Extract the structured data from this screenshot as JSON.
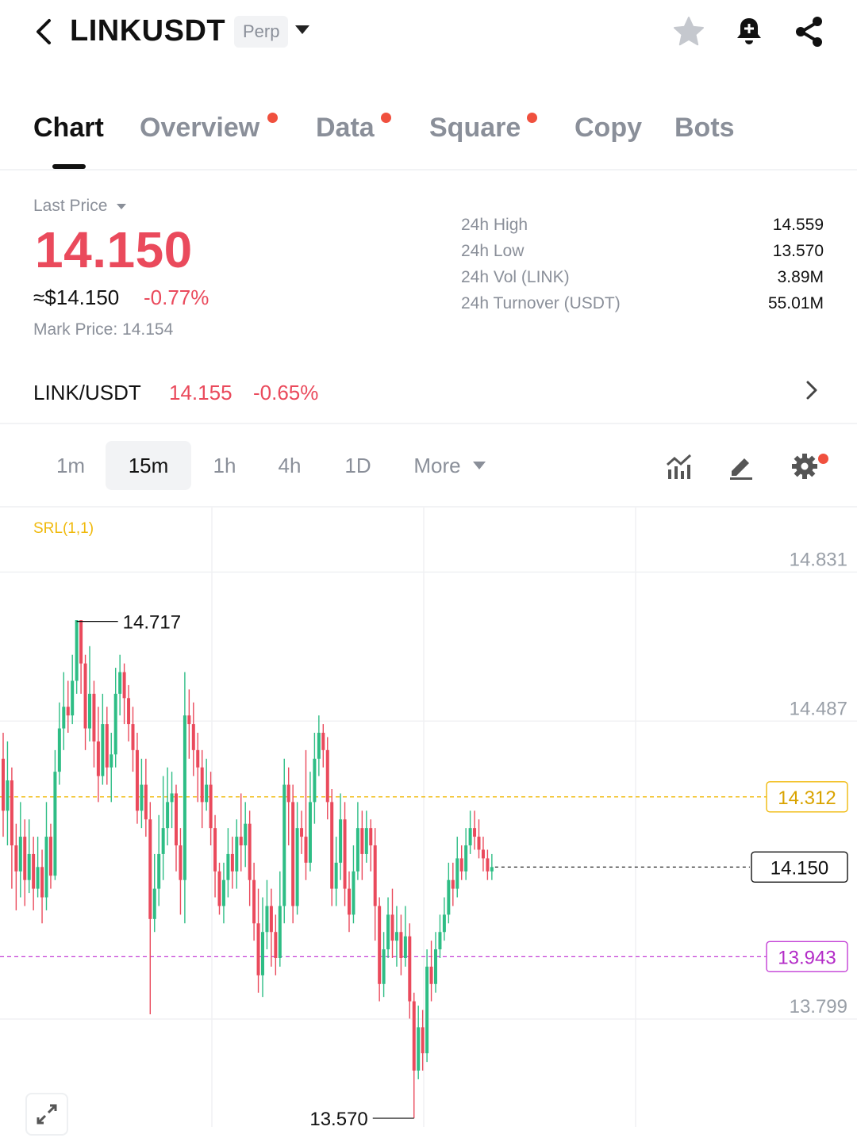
{
  "header": {
    "symbol": "LINKUSDT",
    "contract_type": "Perp",
    "icons": [
      "back-icon",
      "star-icon",
      "bell-plus-icon",
      "share-icon"
    ]
  },
  "tabs": [
    {
      "label": "Chart",
      "active": true,
      "dot": false
    },
    {
      "label": "Overview",
      "active": false,
      "dot": true
    },
    {
      "label": "Data",
      "active": false,
      "dot": true
    },
    {
      "label": "Square",
      "active": false,
      "dot": true
    },
    {
      "label": "Copy",
      "active": false,
      "dot": false
    },
    {
      "label": "Bots",
      "active": false,
      "dot": false
    }
  ],
  "price": {
    "label": "Last Price",
    "last": "14.150",
    "usd": "≈$14.150",
    "change_pct": "-0.77%",
    "mark_label": "Mark Price:",
    "mark_value": "14.154"
  },
  "stats": [
    {
      "label": "24h High",
      "value": "14.559"
    },
    {
      "label": "24h Low",
      "value": "13.570"
    },
    {
      "label": "24h Vol (LINK)",
      "value": "3.89M"
    },
    {
      "label": "24h Turnover (USDT)",
      "value": "55.01M"
    }
  ],
  "spot": {
    "pair": "LINK/USDT",
    "price": "14.155",
    "change": "-0.65%"
  },
  "timeframes": {
    "items": [
      "1m",
      "15m",
      "1h",
      "4h",
      "1D"
    ],
    "active": "15m",
    "more_label": "More"
  },
  "chart_data": {
    "type": "candlestick",
    "indicator": "SRL(1,1)",
    "ylim": [
      13.55,
      14.98
    ],
    "y_ticks": [
      14.831,
      14.487,
      13.799
    ],
    "high_label": "14.717",
    "low_label": "13.570",
    "lines": [
      {
        "value": "14.312",
        "color": "#f0b90b"
      },
      {
        "value": "13.943",
        "color": "#c33fd6"
      },
      {
        "value": "14.150",
        "color": "#111111"
      }
    ],
    "up_color": "#2ebd85",
    "down_color": "#ea4a5c",
    "candles": [
      [
        14.4,
        14.28,
        14.46,
        14.22
      ],
      [
        14.28,
        14.35,
        14.44,
        14.2
      ],
      [
        14.35,
        14.2,
        14.38,
        14.1
      ],
      [
        14.2,
        14.14,
        14.25,
        14.05
      ],
      [
        14.14,
        14.22,
        14.3,
        14.08
      ],
      [
        14.22,
        14.12,
        14.26,
        14.06
      ],
      [
        14.12,
        14.18,
        14.26,
        14.09
      ],
      [
        14.18,
        14.1,
        14.22,
        14.05
      ],
      [
        14.1,
        14.15,
        14.22,
        14.08
      ],
      [
        14.15,
        14.08,
        14.19,
        14.02
      ],
      [
        14.08,
        14.22,
        14.3,
        14.05
      ],
      [
        14.22,
        14.13,
        14.25,
        14.1
      ],
      [
        14.13,
        14.37,
        14.42,
        14.12
      ],
      [
        14.37,
        14.47,
        14.53,
        14.34
      ],
      [
        14.47,
        14.52,
        14.6,
        14.42
      ],
      [
        14.52,
        14.5,
        14.58,
        14.46
      ],
      [
        14.5,
        14.58,
        14.64,
        14.48
      ],
      [
        14.58,
        14.72,
        14.72,
        14.55
      ],
      [
        14.72,
        14.62,
        14.7,
        14.55
      ],
      [
        14.62,
        14.47,
        14.64,
        14.42
      ],
      [
        14.47,
        14.55,
        14.66,
        14.44
      ],
      [
        14.55,
        14.44,
        14.58,
        14.38
      ],
      [
        14.44,
        14.36,
        14.52,
        14.3
      ],
      [
        14.36,
        14.48,
        14.55,
        14.34
      ],
      [
        14.48,
        14.38,
        14.52,
        14.34
      ],
      [
        14.38,
        14.41,
        14.46,
        14.3
      ],
      [
        14.41,
        14.55,
        14.61,
        14.38
      ],
      [
        14.55,
        14.6,
        14.64,
        14.5
      ],
      [
        14.6,
        14.54,
        14.62,
        14.48
      ],
      [
        14.54,
        14.48,
        14.57,
        14.44
      ],
      [
        14.48,
        14.42,
        14.52,
        14.37
      ],
      [
        14.42,
        14.28,
        14.46,
        14.25
      ],
      [
        14.28,
        14.34,
        14.4,
        14.24
      ],
      [
        14.34,
        14.26,
        14.4,
        14.22
      ],
      [
        14.26,
        14.03,
        14.3,
        13.81
      ],
      [
        14.03,
        14.1,
        14.18,
        14.0
      ],
      [
        14.1,
        14.18,
        14.27,
        14.06
      ],
      [
        14.18,
        14.24,
        14.36,
        14.12
      ],
      [
        14.24,
        14.3,
        14.38,
        14.2
      ],
      [
        14.3,
        14.32,
        14.37,
        14.24
      ],
      [
        14.32,
        14.2,
        14.34,
        14.14
      ],
      [
        14.2,
        14.12,
        14.24,
        14.04
      ],
      [
        14.12,
        14.5,
        14.6,
        14.02
      ],
      [
        14.5,
        14.48,
        14.56,
        14.4
      ],
      [
        14.48,
        14.42,
        14.53,
        14.36
      ],
      [
        14.42,
        14.38,
        14.46,
        14.3
      ],
      [
        14.38,
        14.3,
        14.42,
        14.24
      ],
      [
        14.3,
        14.34,
        14.4,
        14.28
      ],
      [
        14.34,
        14.24,
        14.37,
        14.2
      ],
      [
        14.24,
        14.14,
        14.27,
        14.08
      ],
      [
        14.14,
        14.06,
        14.16,
        14.04
      ],
      [
        14.06,
        14.12,
        14.16,
        14.02
      ],
      [
        14.12,
        14.18,
        14.24,
        14.08
      ],
      [
        14.18,
        14.14,
        14.22,
        14.1
      ],
      [
        14.14,
        14.22,
        14.26,
        14.1
      ],
      [
        14.22,
        14.2,
        14.32,
        14.14
      ],
      [
        14.2,
        14.25,
        14.3,
        14.15
      ],
      [
        14.25,
        14.12,
        14.28,
        14.06
      ],
      [
        14.12,
        14.02,
        14.16,
        13.98
      ],
      [
        14.02,
        13.9,
        14.1,
        13.86
      ],
      [
        13.9,
        14.0,
        14.08,
        13.85
      ],
      [
        14.0,
        14.06,
        14.12,
        13.96
      ],
      [
        14.06,
        14.0,
        14.1,
        13.92
      ],
      [
        14.0,
        13.94,
        14.04,
        13.9
      ],
      [
        13.94,
        14.06,
        14.14,
        13.92
      ],
      [
        14.06,
        14.34,
        14.4,
        14.02
      ],
      [
        14.34,
        14.3,
        14.38,
        14.2
      ],
      [
        14.3,
        14.06,
        14.34,
        14.02
      ],
      [
        14.06,
        14.24,
        14.3,
        14.04
      ],
      [
        14.24,
        14.22,
        14.28,
        14.18
      ],
      [
        14.22,
        14.16,
        14.42,
        14.12
      ],
      [
        14.16,
        14.3,
        14.37,
        14.14
      ],
      [
        14.3,
        14.4,
        14.46,
        14.25
      ],
      [
        14.4,
        14.46,
        14.5,
        14.36
      ],
      [
        14.46,
        14.42,
        14.48,
        14.38
      ],
      [
        14.42,
        14.3,
        14.45,
        14.26
      ],
      [
        14.3,
        14.1,
        14.33,
        14.06
      ],
      [
        14.1,
        14.16,
        14.22,
        14.06
      ],
      [
        14.16,
        14.26,
        14.32,
        14.12
      ],
      [
        14.26,
        14.1,
        14.3,
        14.06
      ],
      [
        14.1,
        14.04,
        14.14,
        14.0
      ],
      [
        14.04,
        14.14,
        14.2,
        14.02
      ],
      [
        14.14,
        14.24,
        14.3,
        14.12
      ],
      [
        14.24,
        14.18,
        14.28,
        14.12
      ],
      [
        14.18,
        14.24,
        14.28,
        14.16
      ],
      [
        14.24,
        14.2,
        14.26,
        14.14
      ],
      [
        14.2,
        14.06,
        14.24,
        13.98
      ],
      [
        14.06,
        13.88,
        14.08,
        13.84
      ],
      [
        13.88,
        13.96,
        14.0,
        13.85
      ],
      [
        13.96,
        14.04,
        14.08,
        13.94
      ],
      [
        14.04,
        13.98,
        14.1,
        13.94
      ],
      [
        13.98,
        14.0,
        14.06,
        13.92
      ],
      [
        14.0,
        13.94,
        14.04,
        13.9
      ],
      [
        13.94,
        13.99,
        14.06,
        13.92
      ],
      [
        13.99,
        13.84,
        14.02,
        13.8
      ],
      [
        13.84,
        13.68,
        13.86,
        13.57
      ],
      [
        13.68,
        13.78,
        13.83,
        13.66
      ],
      [
        13.78,
        13.72,
        13.82,
        13.68
      ],
      [
        13.72,
        13.92,
        13.96,
        13.7
      ],
      [
        13.92,
        13.88,
        13.98,
        13.84
      ],
      [
        13.88,
        13.96,
        14.0,
        13.86
      ],
      [
        13.96,
        14.0,
        14.04,
        13.94
      ],
      [
        14.0,
        14.04,
        14.08,
        13.98
      ],
      [
        14.04,
        14.12,
        14.16,
        14.02
      ],
      [
        14.12,
        14.1,
        14.16,
        14.06
      ],
      [
        14.1,
        14.17,
        14.22,
        14.08
      ],
      [
        14.17,
        14.14,
        14.2,
        14.12
      ],
      [
        14.14,
        14.2,
        14.24,
        14.12
      ],
      [
        14.2,
        14.24,
        14.28,
        14.18
      ],
      [
        14.24,
        14.22,
        14.28,
        14.19
      ],
      [
        14.22,
        14.19,
        14.26,
        14.17
      ],
      [
        14.19,
        14.17,
        14.22,
        14.14
      ],
      [
        14.17,
        14.14,
        14.19,
        14.12
      ],
      [
        14.14,
        14.15,
        14.18,
        14.12
      ]
    ]
  }
}
